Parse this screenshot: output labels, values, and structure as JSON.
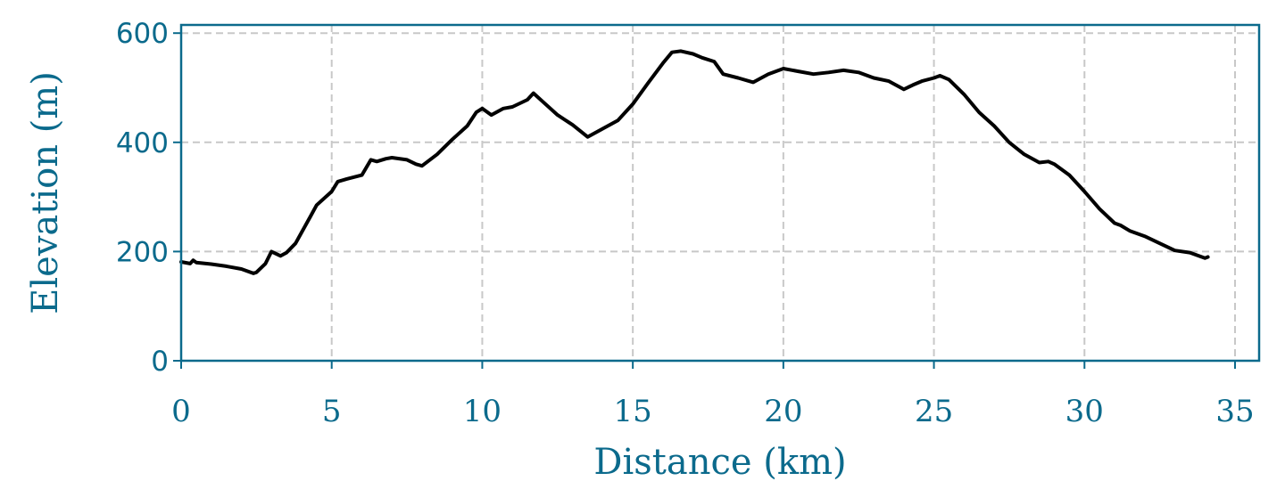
{
  "colors": {
    "axis": "#0b6a8c",
    "line": "#000000",
    "grid": "#c8c8c8",
    "background": "#ffffff"
  },
  "chart_data": {
    "type": "line",
    "title": "",
    "xlabel": "Distance (km)",
    "ylabel": "Elevation (m)",
    "xlim": [
      0,
      35.8
    ],
    "ylim": [
      0,
      615
    ],
    "xticks": [
      0,
      5,
      10,
      15,
      20,
      25,
      30,
      35
    ],
    "xtick_labels": [
      "0",
      "5",
      "10",
      "15",
      "20",
      "25",
      "30",
      "35"
    ],
    "yticks": [
      0,
      200,
      400,
      600
    ],
    "ytick_labels": [
      "0",
      "200",
      "400",
      "600"
    ],
    "grid": true,
    "legend": "none",
    "series": [
      {
        "x": [
          0,
          0.3,
          0.4,
          0.5,
          1,
          1.5,
          2,
          2.4,
          2.5,
          2.8,
          3,
          3.3,
          3.5,
          3.8,
          4,
          4.3,
          4.5,
          5,
          5.2,
          5.5,
          6,
          6.3,
          6.5,
          6.8,
          7,
          7.5,
          7.8,
          8,
          8.5,
          9,
          9.5,
          9.8,
          10,
          10.3,
          10.7,
          11,
          11.5,
          11.7,
          12,
          12.5,
          13,
          13.5,
          14,
          14.5,
          15,
          15.5,
          16,
          16.3,
          16.6,
          17,
          17.3,
          17.7,
          18,
          18.5,
          19,
          19.5,
          20,
          20.5,
          21,
          21.5,
          22,
          22.5,
          23,
          23.5,
          24,
          24.3,
          24.6,
          25,
          25.2,
          25.5,
          26,
          26.5,
          27,
          27.5,
          28,
          28.5,
          28.8,
          29,
          29.5,
          30,
          30.5,
          31,
          31.2,
          31.5,
          32,
          32.5,
          33,
          33.5,
          34,
          34.1
        ],
        "values": [
          181,
          178,
          184,
          180,
          177,
          173,
          168,
          160,
          162,
          178,
          200,
          192,
          198,
          215,
          235,
          265,
          285,
          310,
          328,
          333,
          340,
          368,
          365,
          370,
          372,
          368,
          360,
          357,
          378,
          405,
          430,
          455,
          462,
          450,
          462,
          465,
          478,
          490,
          475,
          450,
          432,
          410,
          425,
          440,
          470,
          508,
          545,
          565,
          567,
          562,
          555,
          548,
          525,
          518,
          510,
          525,
          535,
          530,
          525,
          528,
          532,
          528,
          518,
          512,
          497,
          505,
          512,
          518,
          522,
          515,
          488,
          455,
          430,
          400,
          378,
          363,
          365,
          360,
          340,
          310,
          278,
          252,
          248,
          238,
          228,
          215,
          202,
          198,
          188,
          190
        ]
      }
    ]
  }
}
